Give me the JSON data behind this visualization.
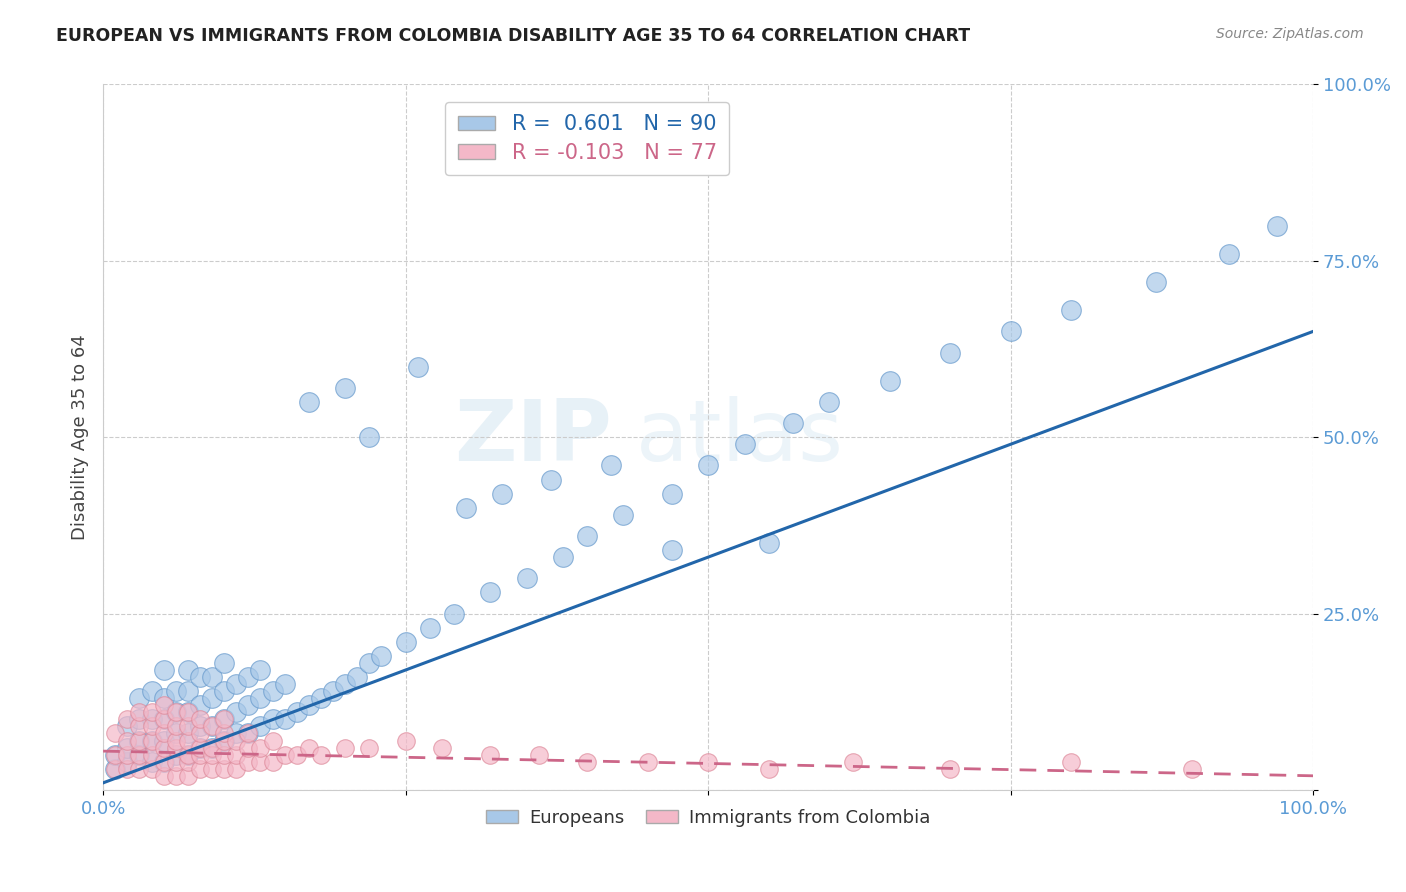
{
  "title": "EUROPEAN VS IMMIGRANTS FROM COLOMBIA DISABILITY AGE 35 TO 64 CORRELATION CHART",
  "source": "Source: ZipAtlas.com",
  "ylabel": "Disability Age 35 to 64",
  "x_ticks": [
    0.0,
    0.25,
    0.5,
    0.75,
    1.0
  ],
  "x_tick_labels": [
    "0.0%",
    "",
    "",
    "",
    "100.0%"
  ],
  "y_ticks": [
    0.0,
    0.25,
    0.5,
    0.75,
    1.0
  ],
  "y_tick_labels": [
    "",
    "25.0%",
    "50.0%",
    "75.0%",
    "100.0%"
  ],
  "xlim": [
    0.0,
    1.0
  ],
  "ylim": [
    0.0,
    1.0
  ],
  "blue_R": 0.601,
  "blue_N": 90,
  "pink_R": -0.103,
  "pink_N": 77,
  "blue_color": "#a8c8e8",
  "pink_color": "#f4b8c8",
  "blue_edge_color": "#6699cc",
  "pink_edge_color": "#dd8899",
  "blue_line_color": "#2266aa",
  "pink_line_color": "#cc6688",
  "legend_blue_label": "Europeans",
  "legend_pink_label": "Immigrants from Colombia",
  "axis_label_color": "#5b9bd5",
  "watermark": "ZIPatlas",
  "blue_line_x0": 0.0,
  "blue_line_y0": 0.01,
  "blue_line_x1": 1.0,
  "blue_line_y1": 0.65,
  "pink_line_x0": 0.0,
  "pink_line_y0": 0.055,
  "pink_line_x1": 1.0,
  "pink_line_y1": 0.02,
  "blue_scatter_x": [
    0.01,
    0.01,
    0.02,
    0.02,
    0.02,
    0.03,
    0.03,
    0.03,
    0.03,
    0.04,
    0.04,
    0.04,
    0.04,
    0.05,
    0.05,
    0.05,
    0.05,
    0.05,
    0.06,
    0.06,
    0.06,
    0.06,
    0.07,
    0.07,
    0.07,
    0.07,
    0.07,
    0.08,
    0.08,
    0.08,
    0.08,
    0.09,
    0.09,
    0.09,
    0.09,
    0.1,
    0.1,
    0.1,
    0.1,
    0.11,
    0.11,
    0.11,
    0.12,
    0.12,
    0.12,
    0.13,
    0.13,
    0.13,
    0.14,
    0.14,
    0.15,
    0.15,
    0.16,
    0.17,
    0.18,
    0.19,
    0.2,
    0.21,
    0.22,
    0.23,
    0.25,
    0.27,
    0.29,
    0.32,
    0.35,
    0.38,
    0.4,
    0.43,
    0.47,
    0.5,
    0.53,
    0.57,
    0.6,
    0.65,
    0.7,
    0.75,
    0.8,
    0.87,
    0.93,
    0.97,
    0.17,
    0.2,
    0.22,
    0.26,
    0.3,
    0.33,
    0.37,
    0.42,
    0.47,
    0.55
  ],
  "blue_scatter_y": [
    0.03,
    0.05,
    0.04,
    0.06,
    0.09,
    0.05,
    0.07,
    0.1,
    0.13,
    0.04,
    0.07,
    0.1,
    0.14,
    0.04,
    0.07,
    0.1,
    0.13,
    0.17,
    0.05,
    0.08,
    0.11,
    0.14,
    0.05,
    0.08,
    0.11,
    0.14,
    0.17,
    0.06,
    0.09,
    0.12,
    0.16,
    0.06,
    0.09,
    0.13,
    0.16,
    0.07,
    0.1,
    0.14,
    0.18,
    0.08,
    0.11,
    0.15,
    0.08,
    0.12,
    0.16,
    0.09,
    0.13,
    0.17,
    0.1,
    0.14,
    0.1,
    0.15,
    0.11,
    0.12,
    0.13,
    0.14,
    0.15,
    0.16,
    0.18,
    0.19,
    0.21,
    0.23,
    0.25,
    0.28,
    0.3,
    0.33,
    0.36,
    0.39,
    0.42,
    0.46,
    0.49,
    0.52,
    0.55,
    0.58,
    0.62,
    0.65,
    0.68,
    0.72,
    0.76,
    0.8,
    0.55,
    0.57,
    0.5,
    0.6,
    0.4,
    0.42,
    0.44,
    0.46,
    0.34,
    0.35
  ],
  "pink_scatter_x": [
    0.01,
    0.01,
    0.01,
    0.02,
    0.02,
    0.02,
    0.02,
    0.03,
    0.03,
    0.03,
    0.03,
    0.03,
    0.04,
    0.04,
    0.04,
    0.04,
    0.04,
    0.05,
    0.05,
    0.05,
    0.05,
    0.05,
    0.05,
    0.06,
    0.06,
    0.06,
    0.06,
    0.06,
    0.06,
    0.07,
    0.07,
    0.07,
    0.07,
    0.07,
    0.07,
    0.08,
    0.08,
    0.08,
    0.08,
    0.08,
    0.09,
    0.09,
    0.09,
    0.09,
    0.1,
    0.1,
    0.1,
    0.1,
    0.1,
    0.11,
    0.11,
    0.11,
    0.12,
    0.12,
    0.12,
    0.13,
    0.13,
    0.14,
    0.14,
    0.15,
    0.16,
    0.17,
    0.18,
    0.2,
    0.22,
    0.25,
    0.28,
    0.32,
    0.36,
    0.4,
    0.45,
    0.5,
    0.55,
    0.62,
    0.7,
    0.8,
    0.9
  ],
  "pink_scatter_y": [
    0.03,
    0.05,
    0.08,
    0.03,
    0.05,
    0.07,
    0.1,
    0.03,
    0.05,
    0.07,
    0.09,
    0.11,
    0.03,
    0.05,
    0.07,
    0.09,
    0.11,
    0.02,
    0.04,
    0.06,
    0.08,
    0.1,
    0.12,
    0.02,
    0.04,
    0.06,
    0.07,
    0.09,
    0.11,
    0.02,
    0.04,
    0.05,
    0.07,
    0.09,
    0.11,
    0.03,
    0.05,
    0.06,
    0.08,
    0.1,
    0.03,
    0.05,
    0.06,
    0.09,
    0.03,
    0.05,
    0.07,
    0.08,
    0.1,
    0.03,
    0.05,
    0.07,
    0.04,
    0.06,
    0.08,
    0.04,
    0.06,
    0.04,
    0.07,
    0.05,
    0.05,
    0.06,
    0.05,
    0.06,
    0.06,
    0.07,
    0.06,
    0.05,
    0.05,
    0.04,
    0.04,
    0.04,
    0.03,
    0.04,
    0.03,
    0.04,
    0.03
  ]
}
